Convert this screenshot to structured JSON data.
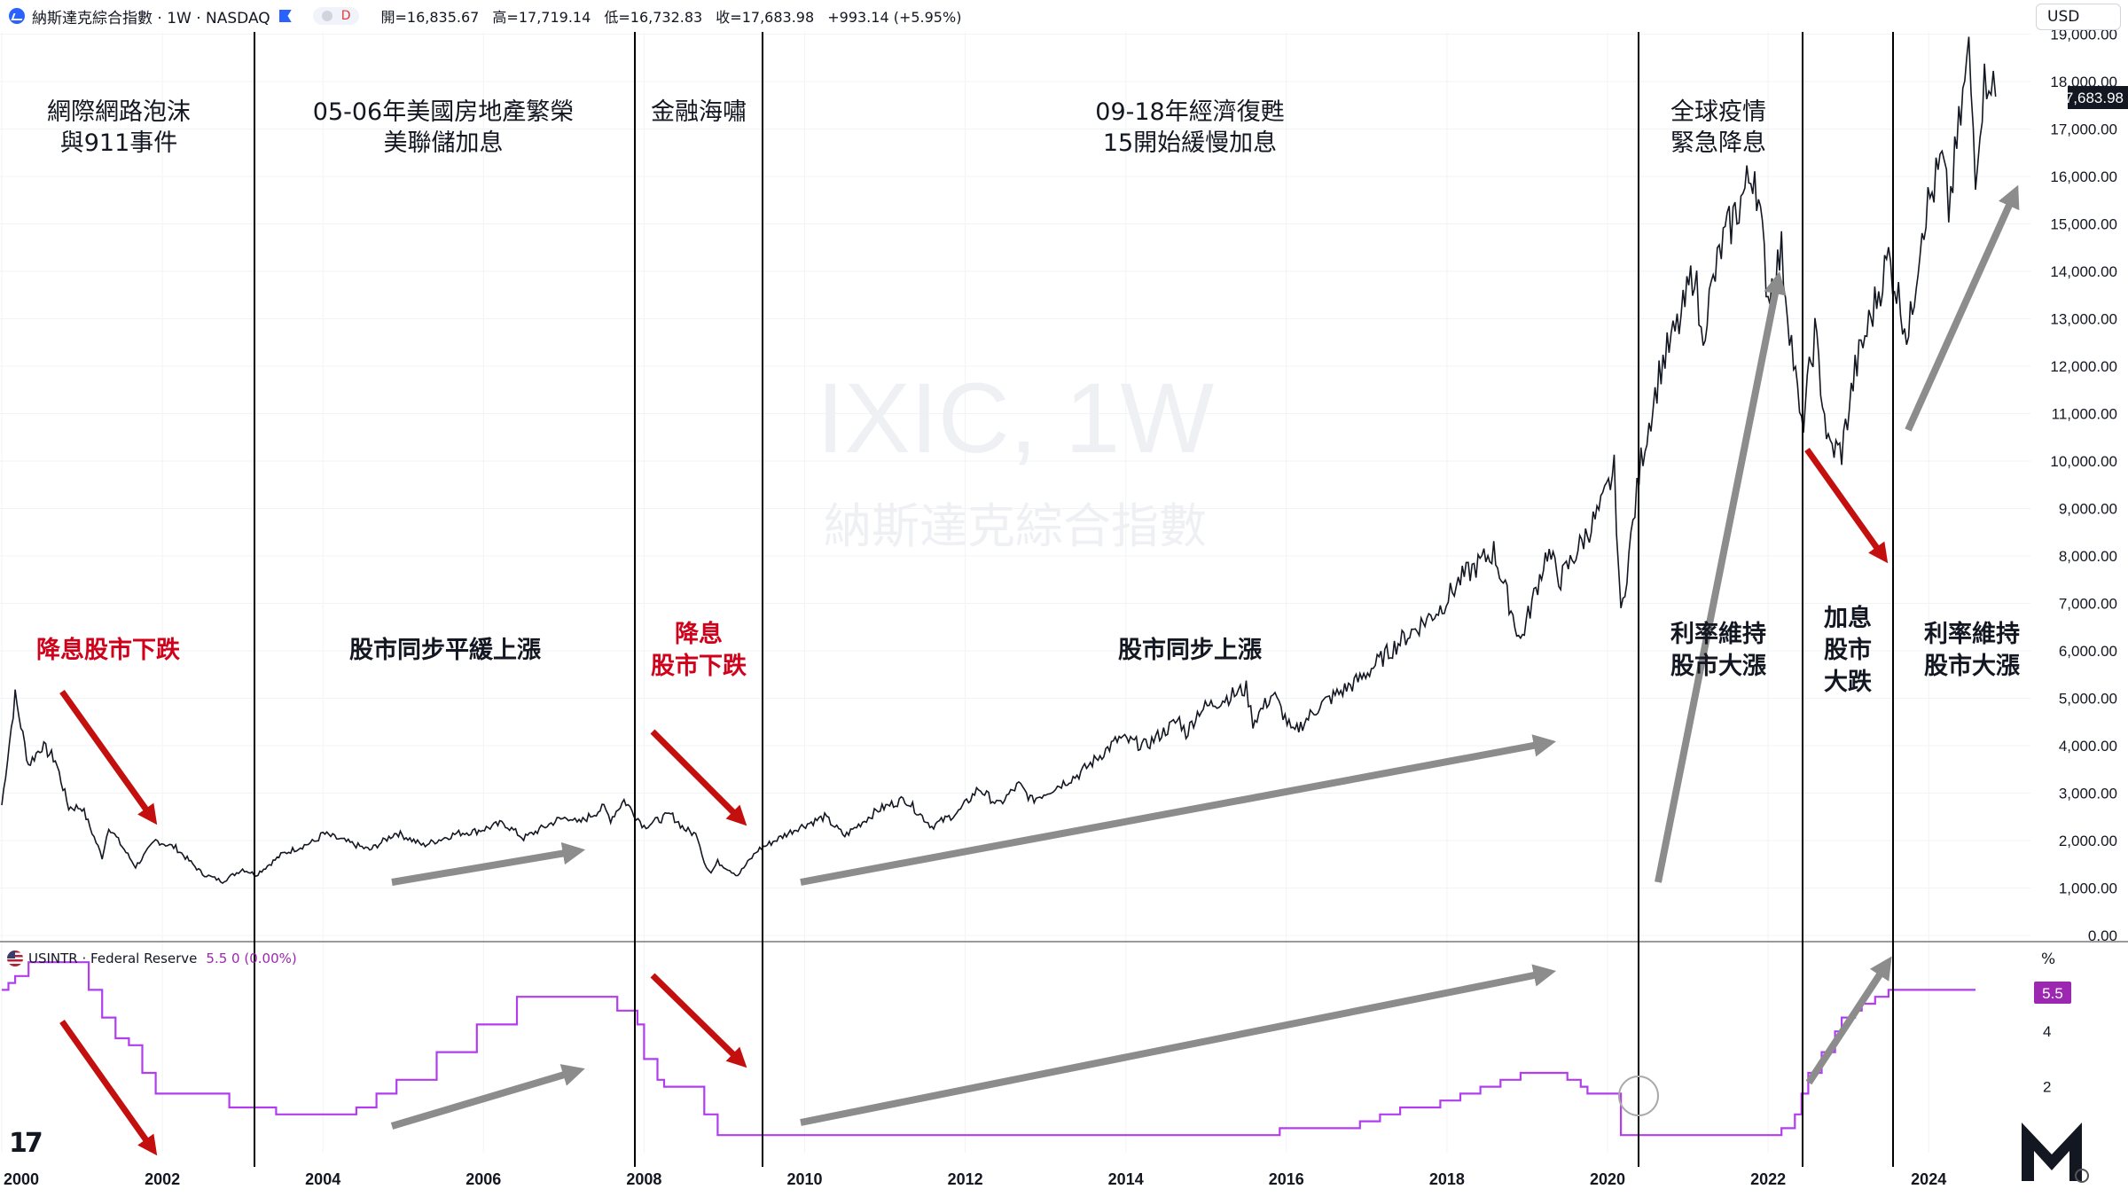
{
  "header": {
    "symbol": "納斯達克綜合指數 · 1W · NASDAQ",
    "pill_label": "D",
    "open": "開=16,835.67",
    "high": "高=17,719.14",
    "low": "低=16,732.83",
    "close": "收=17,683.98",
    "change": "+993.14 (+5.95%)"
  },
  "currency": "USD",
  "watermark": {
    "line1": "IXIC, 1W",
    "line2": "納斯達克綜合指數"
  },
  "lower_pane": {
    "legend_name": "USINTR · Federal Reserve",
    "legend_values": "5.5  0 (0.00%)",
    "unit": "%"
  },
  "last_price_label": "17,683.98",
  "rate_last_label": "5.5",
  "colors": {
    "price_line": "#131722",
    "rate_line": "#b23cf0",
    "arrow_gray": "#8c8c8c",
    "arrow_red": "#c40f0f",
    "annotation_red": "#d0021b"
  },
  "icons": {
    "brand_logo": "m-logo-icon",
    "tradingview": "tradingview-icon",
    "settings": "settings-icon"
  },
  "period_labels": [
    {
      "lines": [
        "網際網路泡沫",
        "與911事件"
      ]
    },
    {
      "lines": [
        "05-06年美國房地產繁榮",
        "美聯儲加息"
      ]
    },
    {
      "lines": [
        "金融海嘯"
      ]
    },
    {
      "lines": [
        "09-18年經濟復甦",
        "15開始緩慢加息"
      ]
    },
    {
      "lines": [
        "全球疫情",
        "緊急降息"
      ]
    }
  ],
  "effect_labels": [
    {
      "lines": [
        "降息股市下跌"
      ],
      "red": true
    },
    {
      "lines": [
        "股市同步平緩上漲"
      ],
      "red": false
    },
    {
      "lines": [
        "降息",
        "股市下跌"
      ],
      "red": true
    },
    {
      "lines": [
        "股市同步上漲"
      ],
      "red": false
    },
    {
      "lines": [
        "利率維持",
        "股市大漲"
      ],
      "red": false
    },
    {
      "lines": [
        "加息",
        "股市",
        "大跌"
      ],
      "red": false
    },
    {
      "lines": [
        "利率維持",
        "股市大漲"
      ],
      "red": false
    }
  ],
  "chart_data": [
    {
      "type": "line",
      "name": "IXIC, 1W",
      "x_axis_ticks": [
        "2000",
        "2002",
        "2004",
        "2006",
        "2008",
        "2010",
        "2012",
        "2014",
        "2016",
        "2018",
        "2020",
        "2022",
        "2024"
      ],
      "y_axis_ticks": [
        "0.00",
        "1,000.00",
        "2,000.00",
        "3,000.00",
        "4,000.00",
        "5,000.00",
        "6,000.00",
        "7,000.00",
        "8,000.00",
        "9,000.00",
        "10,000.00",
        "11,000.00",
        "12,000.00",
        "13,000.00",
        "14,000.00",
        "15,000.00",
        "16,000.00",
        "17,000.00",
        "18,000.00",
        "19,000.00"
      ],
      "ylim": [
        0,
        19000
      ],
      "xlim": [
        "2000-01",
        "2024-11"
      ],
      "series": [
        {
          "points": [
            [
              "2000-01",
              2750
            ],
            [
              "2000-03",
              5050
            ],
            [
              "2000-05",
              3600
            ],
            [
              "2000-07",
              4000
            ],
            [
              "2000-09",
              3700
            ],
            [
              "2000-11",
              2700
            ],
            [
              "2001-01",
              2700
            ],
            [
              "2001-04",
              1650
            ],
            [
              "2001-05",
              2300
            ],
            [
              "2001-09",
              1450
            ],
            [
              "2001-12",
              2000
            ],
            [
              "2002-03",
              1850
            ],
            [
              "2002-07",
              1300
            ],
            [
              "2002-10",
              1140
            ],
            [
              "2003-01",
              1400
            ],
            [
              "2003-03",
              1280
            ],
            [
              "2003-07",
              1720
            ],
            [
              "2003-12",
              2000
            ],
            [
              "2004-01",
              2150
            ],
            [
              "2004-08",
              1800
            ],
            [
              "2004-12",
              2170
            ],
            [
              "2005-04",
              1900
            ],
            [
              "2005-09",
              2150
            ],
            [
              "2005-12",
              2200
            ],
            [
              "2006-04",
              2370
            ],
            [
              "2006-07",
              2050
            ],
            [
              "2006-12",
              2430
            ],
            [
              "2007-02",
              2500
            ],
            [
              "2007-03",
              2350
            ],
            [
              "2007-07",
              2700
            ],
            [
              "2007-08",
              2450
            ],
            [
              "2007-10",
              2850
            ],
            [
              "2008-01",
              2300
            ],
            [
              "2008-05",
              2550
            ],
            [
              "2008-07",
              2250
            ],
            [
              "2008-09",
              2100
            ],
            [
              "2008-10",
              1550
            ],
            [
              "2008-11",
              1320
            ],
            [
              "2008-12",
              1550
            ],
            [
              "2009-03",
              1270
            ],
            [
              "2009-06",
              1800
            ],
            [
              "2009-12",
              2270
            ],
            [
              "2010-04",
              2500
            ],
            [
              "2010-07",
              2100
            ],
            [
              "2010-12",
              2650
            ],
            [
              "2011-04",
              2880
            ],
            [
              "2011-08",
              2300
            ],
            [
              "2011-12",
              2600
            ],
            [
              "2012-03",
              3100
            ],
            [
              "2012-06",
              2750
            ],
            [
              "2012-09",
              3180
            ],
            [
              "2012-11",
              2850
            ],
            [
              "2013-06",
              3400
            ],
            [
              "2013-12",
              4150
            ],
            [
              "2014-04",
              4000
            ],
            [
              "2014-09",
              4550
            ],
            [
              "2014-10",
              4250
            ],
            [
              "2014-12",
              4750
            ],
            [
              "2015-07",
              5200
            ],
            [
              "2015-08",
              4500
            ],
            [
              "2015-11",
              5100
            ],
            [
              "2016-02",
              4250
            ],
            [
              "2016-06",
              4850
            ],
            [
              "2016-12",
              5400
            ],
            [
              "2017-06",
              6200
            ],
            [
              "2017-12",
              6900
            ],
            [
              "2018-03",
              7500
            ],
            [
              "2018-08",
              8100
            ],
            [
              "2018-12",
              6200
            ],
            [
              "2019-04",
              8100
            ],
            [
              "2019-06",
              7500
            ],
            [
              "2019-12",
              9000
            ],
            [
              "2020-02",
              9800
            ],
            [
              "2020-03",
              6700
            ],
            [
              "2020-06",
              10000
            ],
            [
              "2020-09",
              12000
            ],
            [
              "2020-12",
              13000
            ],
            [
              "2021-02",
              14100
            ],
            [
              "2021-03",
              12600
            ],
            [
              "2021-06",
              14500
            ],
            [
              "2021-11",
              16200
            ],
            [
              "2022-01",
              13500
            ],
            [
              "2022-03",
              14400
            ],
            [
              "2022-06",
              10600
            ],
            [
              "2022-08",
              12700
            ],
            [
              "2022-10",
              10300
            ],
            [
              "2022-12",
              10200
            ],
            [
              "2023-02",
              11900
            ],
            [
              "2023-07",
              14300
            ],
            [
              "2023-10",
              12600
            ],
            [
              "2023-12",
              15000
            ],
            [
              "2024-03",
              16300
            ],
            [
              "2024-04",
              15300
            ],
            [
              "2024-07",
              18600
            ],
            [
              "2024-08",
              16200
            ],
            [
              "2024-09",
              17700
            ],
            [
              "2024-10",
              18300
            ],
            [
              "2024-11",
              17684
            ]
          ]
        }
      ]
    },
    {
      "type": "line",
      "name": "USINTR · Federal Reserve",
      "y_axis_ticks": [
        "0",
        "2",
        "4",
        "%"
      ],
      "ylim": [
        0,
        6.8
      ],
      "series": [
        {
          "points": [
            [
              "2000-01",
              5.5
            ],
            [
              "2000-02",
              5.75
            ],
            [
              "2000-03",
              6.0
            ],
            [
              "2000-05",
              6.5
            ],
            [
              "2001-01",
              6.5
            ],
            [
              "2001-02",
              5.5
            ],
            [
              "2001-04",
              4.5
            ],
            [
              "2001-06",
              3.75
            ],
            [
              "2001-08",
              3.5
            ],
            [
              "2001-10",
              2.5
            ],
            [
              "2001-12",
              1.75
            ],
            [
              "2002-11",
              1.25
            ],
            [
              "2003-06",
              1.0
            ],
            [
              "2004-06",
              1.25
            ],
            [
              "2004-09",
              1.75
            ],
            [
              "2004-12",
              2.25
            ],
            [
              "2005-06",
              3.25
            ],
            [
              "2005-12",
              4.25
            ],
            [
              "2006-06",
              5.25
            ],
            [
              "2007-09",
              4.75
            ],
            [
              "2007-12",
              4.25
            ],
            [
              "2008-01",
              3.0
            ],
            [
              "2008-03",
              2.25
            ],
            [
              "2008-04",
              2.0
            ],
            [
              "2008-10",
              1.0
            ],
            [
              "2008-12",
              0.25
            ],
            [
              "2015-12",
              0.5
            ],
            [
              "2016-12",
              0.75
            ],
            [
              "2017-03",
              1.0
            ],
            [
              "2017-06",
              1.25
            ],
            [
              "2017-12",
              1.5
            ],
            [
              "2018-03",
              1.75
            ],
            [
              "2018-06",
              2.0
            ],
            [
              "2018-09",
              2.25
            ],
            [
              "2018-12",
              2.5
            ],
            [
              "2019-07",
              2.25
            ],
            [
              "2019-09",
              2.0
            ],
            [
              "2019-10",
              1.75
            ],
            [
              "2020-03",
              0.25
            ],
            [
              "2022-03",
              0.5
            ],
            [
              "2022-05",
              1.0
            ],
            [
              "2022-06",
              1.75
            ],
            [
              "2022-07",
              2.5
            ],
            [
              "2022-09",
              3.25
            ],
            [
              "2022-11",
              4.0
            ],
            [
              "2022-12",
              4.5
            ],
            [
              "2023-02",
              4.75
            ],
            [
              "2023-03",
              5.0
            ],
            [
              "2023-05",
              5.25
            ],
            [
              "2023-07",
              5.5
            ],
            [
              "2024-08",
              5.5
            ]
          ]
        }
      ]
    }
  ]
}
